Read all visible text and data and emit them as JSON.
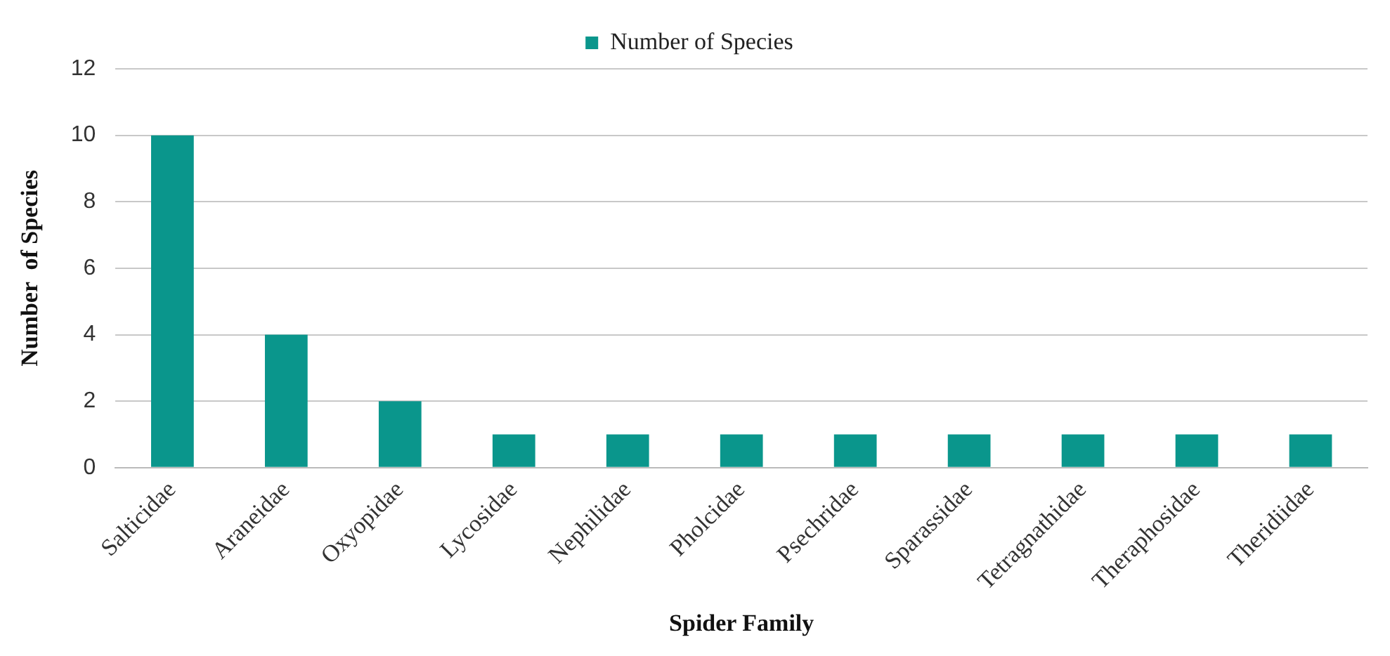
{
  "chart_data": {
    "type": "bar",
    "xlabel": "Spider Family",
    "ylabel": "Number  of Species",
    "categories": [
      "Salticidae",
      "Araneidae",
      "Oxyopidae",
      "Lycosidae",
      "Nephilidae",
      "Pholcidae",
      "Psechridae",
      "Sparassidae",
      "Tetragnathidae",
      "Theraphosidae",
      "Theridiidae"
    ],
    "series": [
      {
        "name": "Number of Species",
        "color": "#0a968c",
        "values": [
          10,
          4,
          2,
          1,
          1,
          1,
          1,
          1,
          1,
          1,
          1
        ]
      }
    ],
    "ylim": [
      0,
      12
    ],
    "yticks": [
      0,
      2,
      4,
      6,
      8,
      10,
      12
    ],
    "grid": "y",
    "legend": "top"
  }
}
